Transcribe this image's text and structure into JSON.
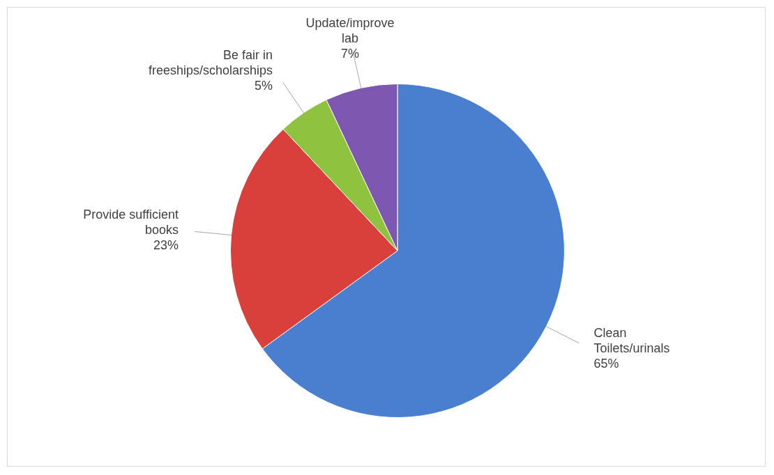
{
  "chart_data": {
    "type": "pie",
    "categories": [
      "Clean Toilets/urinals",
      "Provide sufficient books",
      "Be fair in freeships/scholarships",
      "Update/improve lab"
    ],
    "values": [
      65,
      23,
      5,
      7
    ],
    "value_labels": [
      "65%",
      "23%",
      "5%",
      "7%"
    ],
    "colors": [
      "#4a7fd0",
      "#d9403b",
      "#8fc23f",
      "#7e57b0"
    ],
    "legend": false
  }
}
